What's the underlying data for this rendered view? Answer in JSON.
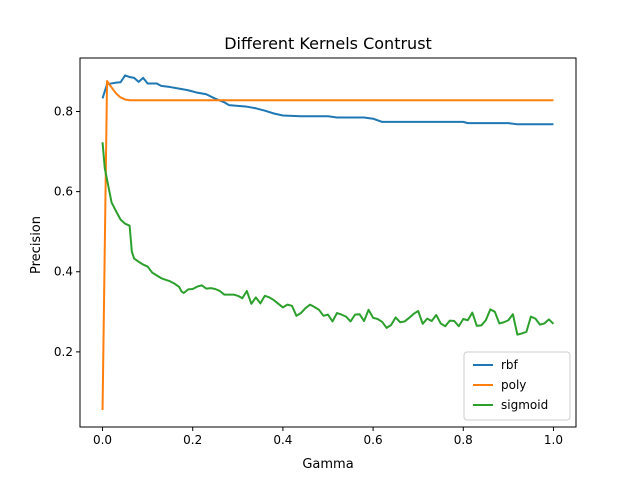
{
  "chart_data": {
    "type": "line",
    "title": "Different Kernels Contrust",
    "xlabel": "Gamma",
    "ylabel": "Precision",
    "xlim": [
      -0.05,
      1.05
    ],
    "ylim": [
      0.0125,
      0.9335
    ],
    "xticks": [
      0.0,
      0.2,
      0.4,
      0.6,
      0.8,
      1.0
    ],
    "xtick_labels": [
      "0.0",
      "0.2",
      "0.4",
      "0.6",
      "0.8",
      "1.0"
    ],
    "yticks": [
      0.2,
      0.4,
      0.6,
      0.8
    ],
    "ytick_labels": [
      "0.2",
      "0.4",
      "0.6",
      "0.8"
    ],
    "grid": false,
    "legend_position": "lower-right",
    "series": [
      {
        "name": "rbf",
        "color": "#1f77b4",
        "points": [
          [
            0.0,
            0.833
          ],
          [
            0.01,
            0.868
          ],
          [
            0.02,
            0.87
          ],
          [
            0.03,
            0.872
          ],
          [
            0.04,
            0.873
          ],
          [
            0.05,
            0.89
          ],
          [
            0.06,
            0.886
          ],
          [
            0.07,
            0.884
          ],
          [
            0.08,
            0.874
          ],
          [
            0.09,
            0.884
          ],
          [
            0.1,
            0.87
          ],
          [
            0.12,
            0.87
          ],
          [
            0.13,
            0.864
          ],
          [
            0.15,
            0.861
          ],
          [
            0.17,
            0.857
          ],
          [
            0.19,
            0.853
          ],
          [
            0.21,
            0.847
          ],
          [
            0.23,
            0.843
          ],
          [
            0.25,
            0.832
          ],
          [
            0.27,
            0.823
          ],
          [
            0.28,
            0.816
          ],
          [
            0.3,
            0.814
          ],
          [
            0.32,
            0.812
          ],
          [
            0.34,
            0.808
          ],
          [
            0.36,
            0.802
          ],
          [
            0.38,
            0.795
          ],
          [
            0.4,
            0.79
          ],
          [
            0.42,
            0.789
          ],
          [
            0.44,
            0.788
          ],
          [
            0.5,
            0.788
          ],
          [
            0.52,
            0.785
          ],
          [
            0.58,
            0.785
          ],
          [
            0.6,
            0.782
          ],
          [
            0.62,
            0.774
          ],
          [
            0.7,
            0.774
          ],
          [
            0.8,
            0.774
          ],
          [
            0.81,
            0.771
          ],
          [
            0.9,
            0.771
          ],
          [
            0.92,
            0.768
          ],
          [
            1.0,
            0.768
          ]
        ]
      },
      {
        "name": "poly",
        "color": "#ff7f0e",
        "points": [
          [
            0.0,
            0.055
          ],
          [
            0.01,
            0.876
          ],
          [
            0.02,
            0.86
          ],
          [
            0.03,
            0.845
          ],
          [
            0.04,
            0.835
          ],
          [
            0.05,
            0.83
          ],
          [
            0.06,
            0.828
          ],
          [
            0.1,
            0.828
          ],
          [
            0.2,
            0.828
          ],
          [
            0.4,
            0.828
          ],
          [
            0.6,
            0.828
          ],
          [
            0.8,
            0.828
          ],
          [
            1.0,
            0.828
          ]
        ]
      },
      {
        "name": "sigmoid",
        "color": "#2ca02c",
        "points": [
          [
            0.0,
            0.723
          ],
          [
            0.005,
            0.658
          ],
          [
            0.01,
            0.63
          ],
          [
            0.02,
            0.573
          ],
          [
            0.03,
            0.551
          ],
          [
            0.04,
            0.53
          ],
          [
            0.05,
            0.52
          ],
          [
            0.06,
            0.515
          ],
          [
            0.065,
            0.45
          ],
          [
            0.07,
            0.433
          ],
          [
            0.08,
            0.425
          ],
          [
            0.09,
            0.418
          ],
          [
            0.1,
            0.413
          ],
          [
            0.11,
            0.398
          ],
          [
            0.12,
            0.391
          ],
          [
            0.13,
            0.384
          ],
          [
            0.14,
            0.38
          ],
          [
            0.15,
            0.376
          ],
          [
            0.16,
            0.37
          ],
          [
            0.17,
            0.362
          ],
          [
            0.175,
            0.351
          ],
          [
            0.18,
            0.347
          ],
          [
            0.19,
            0.356
          ],
          [
            0.2,
            0.357
          ],
          [
            0.21,
            0.363
          ],
          [
            0.22,
            0.366
          ],
          [
            0.23,
            0.358
          ],
          [
            0.24,
            0.359
          ],
          [
            0.25,
            0.357
          ],
          [
            0.26,
            0.352
          ],
          [
            0.27,
            0.343
          ],
          [
            0.28,
            0.343
          ],
          [
            0.29,
            0.343
          ],
          [
            0.3,
            0.34
          ],
          [
            0.31,
            0.334
          ],
          [
            0.32,
            0.352
          ],
          [
            0.33,
            0.32
          ],
          [
            0.34,
            0.336
          ],
          [
            0.35,
            0.321
          ],
          [
            0.36,
            0.34
          ],
          [
            0.37,
            0.336
          ],
          [
            0.38,
            0.329
          ],
          [
            0.39,
            0.32
          ],
          [
            0.4,
            0.311
          ],
          [
            0.41,
            0.318
          ],
          [
            0.42,
            0.315
          ],
          [
            0.43,
            0.29
          ],
          [
            0.44,
            0.297
          ],
          [
            0.45,
            0.309
          ],
          [
            0.46,
            0.318
          ],
          [
            0.47,
            0.312
          ],
          [
            0.48,
            0.305
          ],
          [
            0.49,
            0.29
          ],
          [
            0.5,
            0.293
          ],
          [
            0.51,
            0.276
          ],
          [
            0.52,
            0.297
          ],
          [
            0.53,
            0.293
          ],
          [
            0.54,
            0.288
          ],
          [
            0.55,
            0.276
          ],
          [
            0.56,
            0.293
          ],
          [
            0.57,
            0.294
          ],
          [
            0.58,
            0.277
          ],
          [
            0.59,
            0.305
          ],
          [
            0.6,
            0.285
          ],
          [
            0.61,
            0.282
          ],
          [
            0.62,
            0.275
          ],
          [
            0.63,
            0.26
          ],
          [
            0.64,
            0.267
          ],
          [
            0.65,
            0.286
          ],
          [
            0.66,
            0.274
          ],
          [
            0.67,
            0.276
          ],
          [
            0.68,
            0.285
          ],
          [
            0.69,
            0.295
          ],
          [
            0.7,
            0.302
          ],
          [
            0.71,
            0.27
          ],
          [
            0.72,
            0.283
          ],
          [
            0.73,
            0.277
          ],
          [
            0.74,
            0.292
          ],
          [
            0.75,
            0.271
          ],
          [
            0.76,
            0.264
          ],
          [
            0.77,
            0.278
          ],
          [
            0.78,
            0.277
          ],
          [
            0.79,
            0.264
          ],
          [
            0.8,
            0.282
          ],
          [
            0.81,
            0.279
          ],
          [
            0.82,
            0.298
          ],
          [
            0.83,
            0.265
          ],
          [
            0.84,
            0.266
          ],
          [
            0.85,
            0.279
          ],
          [
            0.86,
            0.306
          ],
          [
            0.87,
            0.3
          ],
          [
            0.88,
            0.271
          ],
          [
            0.89,
            0.274
          ],
          [
            0.9,
            0.279
          ],
          [
            0.91,
            0.294
          ],
          [
            0.92,
            0.243
          ],
          [
            0.93,
            0.246
          ],
          [
            0.94,
            0.25
          ],
          [
            0.95,
            0.288
          ],
          [
            0.96,
            0.283
          ],
          [
            0.97,
            0.268
          ],
          [
            0.98,
            0.271
          ],
          [
            0.99,
            0.281
          ],
          [
            1.0,
            0.27
          ]
        ]
      }
    ]
  }
}
